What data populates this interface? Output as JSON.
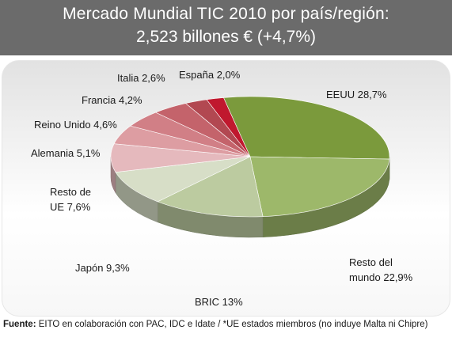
{
  "header": {
    "line1": "Mercado Mundial TIC 2010 por país/región:",
    "line2": "2,523 billones € (+4,7%)"
  },
  "chart_data": {
    "type": "pie",
    "slices": [
      {
        "name": "EEUU",
        "value": 28.7,
        "label": "EEUU 28,7%",
        "color": "#7b9a3c"
      },
      {
        "name": "Resto del mundo",
        "value": 22.9,
        "label": "Resto del|mundo 22,9%",
        "color": "#9db86a"
      },
      {
        "name": "BRIC",
        "value": 13,
        "label": "BRIC 13%",
        "color": "#bccba0"
      },
      {
        "name": "Japón",
        "value": 9.3,
        "label": "Japón 9,3%",
        "color": "#d7dec7"
      },
      {
        "name": "Resto de UE",
        "value": 7.6,
        "label": "Resto de|UE 7,6%",
        "color": "#e5b9bd"
      },
      {
        "name": "Alemania",
        "value": 5.1,
        "label": "Alemania 5,1%",
        "color": "#dd9da2"
      },
      {
        "name": "Reino Unido",
        "value": 4.6,
        "label": "Reino Unido 4,6%",
        "color": "#d17f86"
      },
      {
        "name": "Francia",
        "value": 4.2,
        "label": "Francia 4,2%",
        "color": "#c4636b"
      },
      {
        "name": "Italia",
        "value": 2.6,
        "label": "Italia 2,6%",
        "color": "#b24851"
      },
      {
        "name": "España",
        "value": 2.0,
        "label": "España 2,0%",
        "color": "#c0182e"
      }
    ]
  },
  "footer": {
    "source_label": "Fuente:",
    "source_text": " EITO en colaboración con PAC, IDC e Idate / *UE estados miembros (no induye Malta ni Chipre)"
  }
}
